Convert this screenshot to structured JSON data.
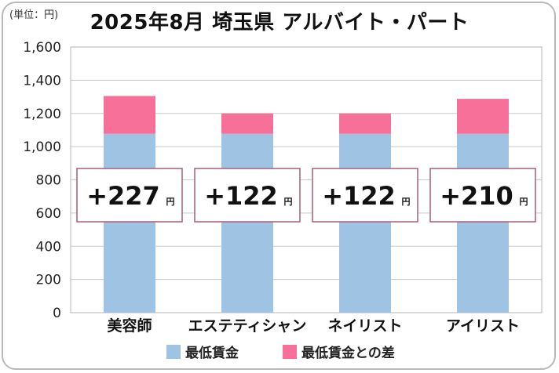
{
  "chart_data": {
    "type": "bar",
    "title": "2025年8月 埼玉県 アルバイト・パート",
    "unit_label": "(単位：円)",
    "categories": [
      "美容師",
      "エステティシャン",
      "ネイリスト",
      "アイリスト"
    ],
    "series": [
      {
        "name": "最低賃金",
        "color": "#9ec3e3",
        "values": [
          1078,
          1078,
          1078,
          1078
        ]
      },
      {
        "name": "最低賃金との差",
        "color": "#f7709a",
        "values": [
          227,
          122,
          122,
          210
        ]
      }
    ],
    "difference_labels": [
      "+227",
      "+122",
      "+122",
      "+210"
    ],
    "difference_unit": "円",
    "ylim": [
      0,
      1600
    ],
    "yticks": [
      0,
      200,
      400,
      600,
      800,
      1000,
      1200,
      1400,
      1600
    ],
    "ytick_labels": [
      "0",
      "200",
      "400",
      "600",
      "800",
      "1,000",
      "1,200",
      "1,400",
      "1,600"
    ],
    "legend_position": "bottom",
    "grid": true
  }
}
